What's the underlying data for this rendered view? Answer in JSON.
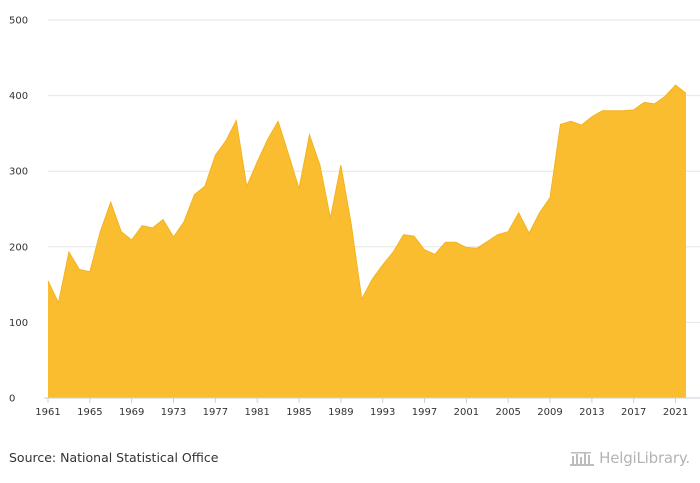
{
  "chart_data": {
    "type": "area",
    "title": "",
    "xlabel": "",
    "ylabel": "",
    "xlim": [
      1961,
      2022
    ],
    "ylim": [
      0,
      500
    ],
    "y_ticks": [
      0,
      100,
      200,
      300,
      400,
      500
    ],
    "y_tick_labels": [
      "0",
      "100",
      "200",
      "300",
      "400",
      "500"
    ],
    "x_ticks": [
      1961,
      1965,
      1969,
      1973,
      1977,
      1981,
      1985,
      1989,
      1993,
      1997,
      2001,
      2005,
      2009,
      2013,
      2017,
      2021
    ],
    "x_tick_labels": [
      "1961",
      "1965",
      "1969",
      "1973",
      "1977",
      "1981",
      "1985",
      "1989",
      "1993",
      "1997",
      "2001",
      "2005",
      "2009",
      "2013",
      "2017",
      "2021"
    ],
    "grid": "horizontal",
    "fill_color": "#fbbd30",
    "line_color": "#f2b41e",
    "series": [
      {
        "x": [
          1961,
          1962,
          1963,
          1964,
          1965,
          1966,
          1967,
          1968,
          1969,
          1970,
          1971,
          1972,
          1973,
          1974,
          1975,
          1976,
          1977,
          1978,
          1979,
          1980,
          1981,
          1982,
          1983,
          1984,
          1985,
          1986,
          1987,
          1988,
          1989,
          1990,
          1991,
          1992,
          1993,
          1994,
          1995,
          1996,
          1997,
          1998,
          1999,
          2000,
          2001,
          2002,
          2003,
          2004,
          2005,
          2006,
          2007,
          2008,
          2009,
          2010,
          2011,
          2012,
          2013,
          2014,
          2015,
          2016,
          2017,
          2018,
          2019,
          2020,
          2021,
          2022
        ],
        "values": [
          155,
          126,
          193,
          170,
          167,
          220,
          259,
          220,
          209,
          228,
          225,
          236,
          213,
          233,
          269,
          280,
          321,
          340,
          367,
          280,
          312,
          342,
          366,
          322,
          277,
          348,
          308,
          238,
          308,
          229,
          131,
          157,
          176,
          193,
          216,
          214,
          196,
          190,
          206,
          206,
          199,
          198,
          207,
          216,
          220,
          245,
          218,
          245,
          265,
          362,
          366,
          361,
          372,
          380,
          380,
          380,
          381,
          391,
          389,
          399,
          414,
          403
        ]
      }
    ]
  },
  "footer": {
    "source": "Source: National Statistical Office",
    "brand": "HelgiLibrary."
  }
}
